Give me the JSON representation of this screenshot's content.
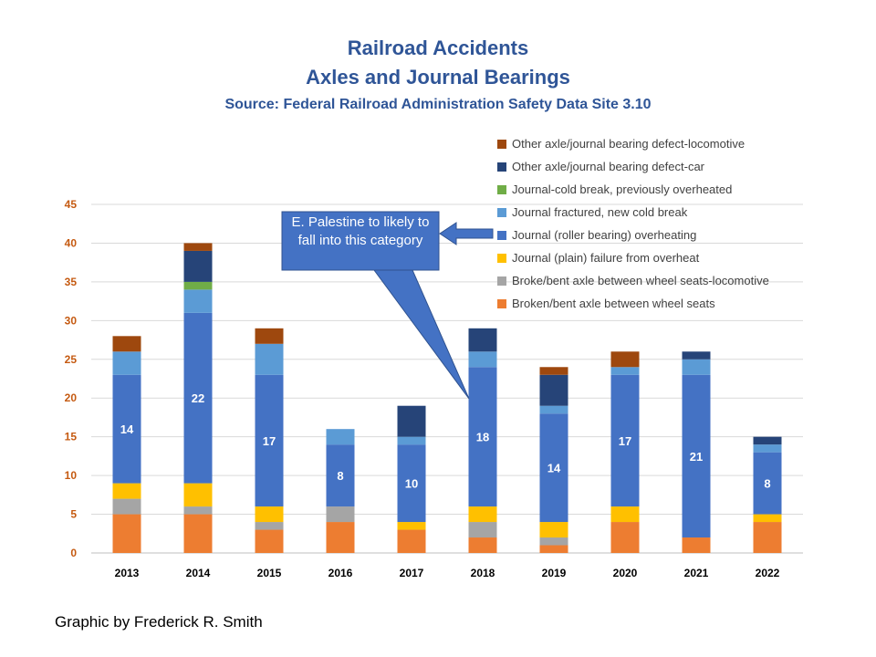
{
  "title_line1": "Railroad Accidents",
  "title_line2": "Axles and Journal Bearings",
  "title_source": "Source: Federal Railroad Administration  Safety Data Site 3.10",
  "credit": "Graphic by Frederick R. Smith",
  "callout_text": "E. Palestine to likely to fall into this category",
  "chart_data": {
    "type": "bar",
    "stacked": true,
    "title": "Railroad Accidents Axles and Journal Bearings",
    "categories": [
      "2013",
      "2014",
      "2015",
      "2016",
      "2017",
      "2018",
      "2019",
      "2020",
      "2021",
      "2022"
    ],
    "ylim": [
      0,
      45
    ],
    "yticks": [
      0,
      5,
      10,
      15,
      20,
      25,
      30,
      35,
      40,
      45
    ],
    "grid": true,
    "legend_position": "top-right",
    "data_label_series": "Journal (roller bearing) overheating",
    "series": [
      {
        "name": "Broken/bent axle between wheel seats",
        "color": "#ed7d31",
        "values": [
          5,
          5,
          3,
          4,
          3,
          2,
          1,
          4,
          2,
          4
        ]
      },
      {
        "name": "Broke/bent axle between wheel seats-locomotive",
        "color": "#a5a5a5",
        "values": [
          2,
          1,
          1,
          2,
          0,
          2,
          1,
          0,
          0,
          0
        ]
      },
      {
        "name": "Journal (plain) failure from overheat",
        "color": "#ffc000",
        "values": [
          2,
          3,
          2,
          0,
          1,
          2,
          2,
          2,
          0,
          1
        ]
      },
      {
        "name": "Journal (roller bearing) overheating",
        "color": "#4472c4",
        "values": [
          14,
          22,
          17,
          8,
          10,
          18,
          14,
          17,
          21,
          8
        ]
      },
      {
        "name": "Journal fractured, new cold break",
        "color": "#5b9bd5",
        "values": [
          3,
          3,
          4,
          2,
          1,
          2,
          1,
          1,
          2,
          1
        ]
      },
      {
        "name": "Journal-cold break, previously overheated",
        "color": "#70ad47",
        "values": [
          0,
          1,
          0,
          0,
          0,
          0,
          0,
          0,
          0,
          0
        ]
      },
      {
        "name": "Other axle/journal bearing defect-car",
        "color": "#264478",
        "values": [
          0,
          4,
          0,
          0,
          4,
          3,
          4,
          0,
          1,
          1
        ]
      },
      {
        "name": "Other axle/journal bearing defect-locomotive",
        "color": "#9e480e",
        "values": [
          2,
          1,
          2,
          0,
          0,
          0,
          1,
          2,
          0,
          0
        ]
      }
    ]
  }
}
